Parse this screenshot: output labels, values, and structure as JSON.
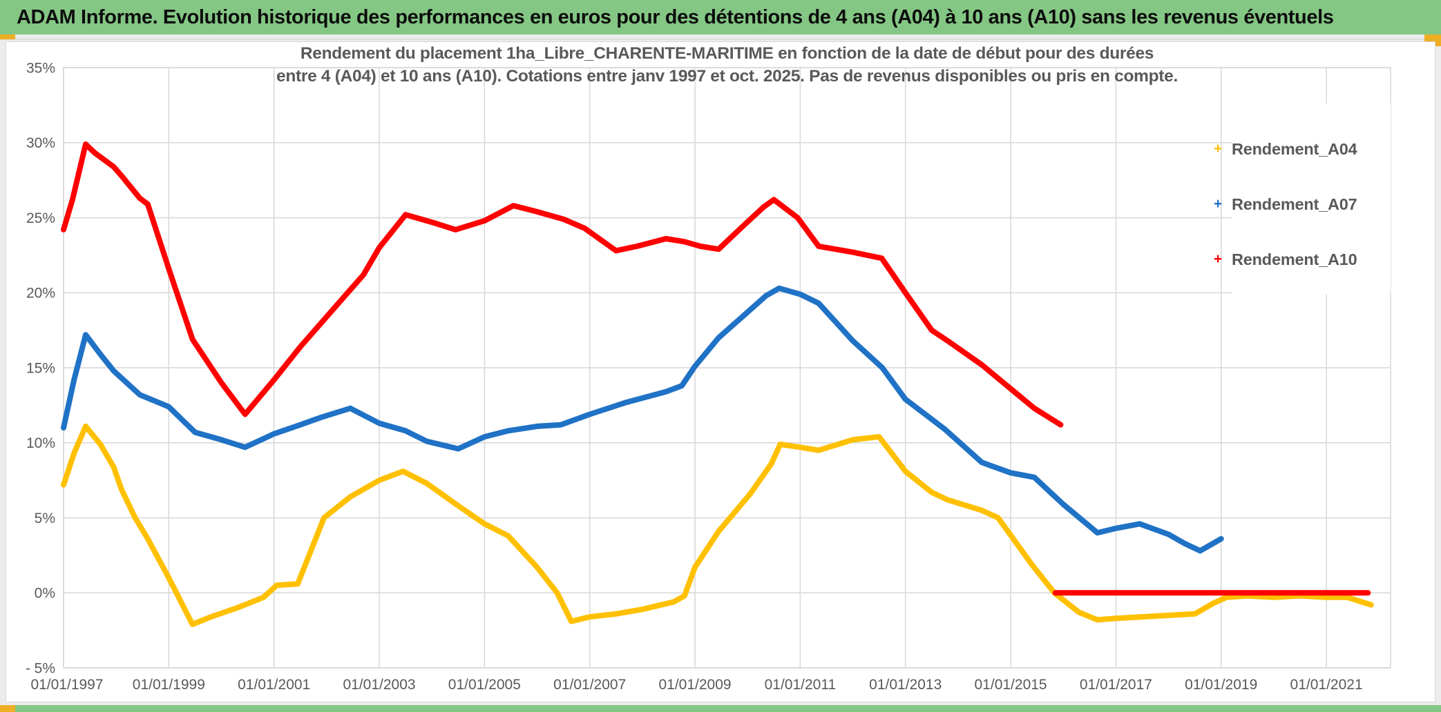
{
  "header": {
    "title": "ADAM Informe. Evolution historique des performances en euros pour des détentions de 4 ans (A04) à 10 ans (A10) sans les revenus éventuels"
  },
  "chart": {
    "title_line1": "Rendement du placement 1ha_Libre_CHARENTE-MARITIME en fonction de la date de début pour des durées",
    "title_line2": "entre 4 (A04) et 10 ans (A10). Cotations entre janv 1997 et oct. 2025. Pas de revenus disponibles ou pris en compte."
  },
  "colors": {
    "header_green": "#84C784",
    "accent_gold": "#EFAF24",
    "gridline": "#D9D9D9",
    "axis_text": "#595959",
    "series_a04": "#FFC000",
    "series_a07": "#1F72C5",
    "series_a10": "#FF0000"
  },
  "chart_data": {
    "type": "line",
    "title": "Rendement du placement 1ha_Libre_CHARENTE-MARITIME en fonction de la date de début pour des durées entre 4 (A04) et 10 ans (A10). Cotations entre janv 1997 et oct. 2025. Pas de revenus disponibles ou pris en compte.",
    "grid": true,
    "legend_position": "right",
    "x_axis": {
      "range_years": [
        1996.94,
        2022.2
      ],
      "ticks": [
        {
          "year": 1997,
          "label": "01/01/1997"
        },
        {
          "year": 1999,
          "label": "01/01/1999"
        },
        {
          "year": 2001,
          "label": "01/01/2001"
        },
        {
          "year": 2003,
          "label": "01/01/2003"
        },
        {
          "year": 2005,
          "label": "01/01/2005"
        },
        {
          "year": 2007,
          "label": "01/01/2007"
        },
        {
          "year": 2009,
          "label": "01/01/2009"
        },
        {
          "year": 2011,
          "label": "01/01/2011"
        },
        {
          "year": 2013,
          "label": "01/01/2013"
        },
        {
          "year": 2015,
          "label": "01/01/2015"
        },
        {
          "year": 2017,
          "label": "01/01/2017"
        },
        {
          "year": 2019,
          "label": "01/01/2019"
        },
        {
          "year": 2021,
          "label": "01/01/2021"
        }
      ]
    },
    "y_axis": {
      "range_percent": [
        -5,
        35
      ],
      "ticks": [
        {
          "v": 35,
          "label": "35%"
        },
        {
          "v": 30,
          "label": "30%"
        },
        {
          "v": 25,
          "label": "25%"
        },
        {
          "v": 20,
          "label": "20%"
        },
        {
          "v": 15,
          "label": "15%"
        },
        {
          "v": 10,
          "label": "10%"
        },
        {
          "v": 5,
          "label": "5%"
        },
        {
          "v": 0,
          "label": "0%"
        },
        {
          "v": -5,
          "label": "- 5%"
        }
      ]
    },
    "legend": [
      {
        "label": "Rendement_A04",
        "color": "#FFC000",
        "marker": "+"
      },
      {
        "label": "Rendement_A07",
        "color": "#1F72C5",
        "marker": "+"
      },
      {
        "label": "Rendement_A10",
        "color": "#FF0000",
        "marker": "+"
      }
    ],
    "series": [
      {
        "name": "Rendement_A04",
        "color": "#FFC000",
        "segments": [
          [
            [
              1997.0,
              7.2
            ],
            [
              1997.2,
              9.3
            ],
            [
              1997.42,
              11.1
            ],
            [
              1997.7,
              9.9
            ],
            [
              1997.95,
              8.4
            ],
            [
              1998.1,
              6.9
            ],
            [
              1998.36,
              5.0
            ],
            [
              1998.6,
              3.6
            ],
            [
              1999.0,
              1.0
            ],
            [
              1999.45,
              -2.1
            ],
            [
              1999.8,
              -1.6
            ],
            [
              2000.3,
              -1.0
            ],
            [
              2000.8,
              -0.3
            ],
            [
              2001.05,
              0.5
            ],
            [
              2001.45,
              0.6
            ],
            [
              2001.95,
              5.0
            ],
            [
              2002.45,
              6.4
            ],
            [
              2003.0,
              7.5
            ],
            [
              2003.45,
              8.1
            ],
            [
              2003.9,
              7.3
            ],
            [
              2004.5,
              5.8
            ],
            [
              2005.0,
              4.6
            ],
            [
              2005.45,
              3.8
            ],
            [
              2006.0,
              1.7
            ],
            [
              2006.38,
              0.0
            ],
            [
              2006.65,
              -1.9
            ],
            [
              2007.0,
              -1.6
            ],
            [
              2007.5,
              -1.4
            ],
            [
              2008.0,
              -1.1
            ],
            [
              2008.6,
              -0.6
            ],
            [
              2008.8,
              -0.2
            ],
            [
              2009.0,
              1.7
            ],
            [
              2009.45,
              4.1
            ],
            [
              2010.05,
              6.6
            ],
            [
              2010.45,
              8.6
            ],
            [
              2010.62,
              9.9
            ],
            [
              2011.0,
              9.7
            ],
            [
              2011.35,
              9.5
            ],
            [
              2012.0,
              10.2
            ],
            [
              2012.5,
              10.4
            ],
            [
              2013.0,
              8.1
            ],
            [
              2013.5,
              6.7
            ],
            [
              2013.8,
              6.2
            ],
            [
              2014.45,
              5.5
            ],
            [
              2014.76,
              5.0
            ],
            [
              2015.4,
              1.9
            ],
            [
              2015.83,
              0.0
            ],
            [
              2016.3,
              -1.3
            ],
            [
              2016.65,
              -1.8
            ],
            [
              2017.0,
              -1.7
            ],
            [
              2017.5,
              -1.6
            ],
            [
              2018.0,
              -1.5
            ],
            [
              2018.5,
              -1.4
            ],
            [
              2018.85,
              -0.7
            ],
            [
              2019.1,
              -0.3
            ],
            [
              2019.5,
              -0.2
            ],
            [
              2020.0,
              -0.3
            ],
            [
              2020.5,
              -0.2
            ],
            [
              2021.0,
              -0.3
            ],
            [
              2021.4,
              -0.3
            ],
            [
              2021.85,
              -0.8
            ]
          ]
        ]
      },
      {
        "name": "Rendement_A07",
        "color": "#1F72C5",
        "segments": [
          [
            [
              1997.0,
              11.0
            ],
            [
              1997.2,
              14.2
            ],
            [
              1997.42,
              17.2
            ],
            [
              1997.7,
              15.9
            ],
            [
              1997.95,
              14.8
            ],
            [
              1998.45,
              13.2
            ],
            [
              1999.0,
              12.4
            ],
            [
              1999.5,
              10.7
            ],
            [
              2000.0,
              10.2
            ],
            [
              2000.45,
              9.7
            ],
            [
              2001.0,
              10.6
            ],
            [
              2001.5,
              11.2
            ],
            [
              2001.9,
              11.7
            ],
            [
              2002.45,
              12.3
            ],
            [
              2003.0,
              11.3
            ],
            [
              2003.5,
              10.8
            ],
            [
              2003.9,
              10.1
            ],
            [
              2004.5,
              9.6
            ],
            [
              2005.0,
              10.4
            ],
            [
              2005.45,
              10.8
            ],
            [
              2006.0,
              11.1
            ],
            [
              2006.45,
              11.2
            ],
            [
              2007.0,
              11.9
            ],
            [
              2007.7,
              12.7
            ],
            [
              2008.45,
              13.4
            ],
            [
              2008.75,
              13.8
            ],
            [
              2009.0,
              15.1
            ],
            [
              2009.45,
              17.0
            ],
            [
              2009.9,
              18.4
            ],
            [
              2010.35,
              19.8
            ],
            [
              2010.6,
              20.3
            ],
            [
              2011.0,
              19.9
            ],
            [
              2011.35,
              19.3
            ],
            [
              2012.0,
              16.8
            ],
            [
              2012.56,
              15.0
            ],
            [
              2013.0,
              12.9
            ],
            [
              2013.75,
              10.9
            ],
            [
              2014.45,
              8.7
            ],
            [
              2014.6,
              8.5
            ],
            [
              2015.0,
              8.0
            ],
            [
              2015.45,
              7.7
            ],
            [
              2016.0,
              5.9
            ],
            [
              2016.65,
              4.0
            ],
            [
              2017.0,
              4.3
            ],
            [
              2017.45,
              4.6
            ],
            [
              2018.0,
              3.9
            ],
            [
              2018.3,
              3.3
            ],
            [
              2018.6,
              2.8
            ],
            [
              2019.0,
              3.6
            ]
          ]
        ]
      },
      {
        "name": "Rendement_A10",
        "color": "#FF0000",
        "segments": [
          [
            [
              1997.0,
              24.2
            ],
            [
              1997.17,
              26.2
            ],
            [
              1997.42,
              29.9
            ],
            [
              1997.6,
              29.3
            ],
            [
              1997.95,
              28.4
            ],
            [
              1998.1,
              27.8
            ],
            [
              1998.45,
              26.3
            ],
            [
              1998.6,
              25.9
            ],
            [
              1999.0,
              21.6
            ],
            [
              1999.45,
              16.9
            ],
            [
              2000.0,
              14.0
            ],
            [
              2000.45,
              11.9
            ],
            [
              2001.0,
              14.2
            ],
            [
              2001.5,
              16.4
            ],
            [
              2002.1,
              18.8
            ],
            [
              2002.7,
              21.2
            ],
            [
              2003.0,
              23.0
            ],
            [
              2003.5,
              25.2
            ],
            [
              2004.0,
              24.7
            ],
            [
              2004.45,
              24.2
            ],
            [
              2005.0,
              24.8
            ],
            [
              2005.55,
              25.8
            ],
            [
              2006.0,
              25.4
            ],
            [
              2006.5,
              24.9
            ],
            [
              2006.9,
              24.3
            ],
            [
              2007.5,
              22.8
            ],
            [
              2007.9,
              23.1
            ],
            [
              2008.45,
              23.6
            ],
            [
              2008.8,
              23.4
            ],
            [
              2009.1,
              23.1
            ],
            [
              2009.45,
              22.9
            ],
            [
              2009.9,
              24.4
            ],
            [
              2010.3,
              25.7
            ],
            [
              2010.5,
              26.2
            ],
            [
              2010.95,
              25.0
            ],
            [
              2011.35,
              23.1
            ],
            [
              2012.0,
              22.7
            ],
            [
              2012.55,
              22.3
            ],
            [
              2013.0,
              20.0
            ],
            [
              2013.5,
              17.5
            ],
            [
              2013.8,
              16.8
            ],
            [
              2014.45,
              15.2
            ],
            [
              2015.0,
              13.6
            ],
            [
              2015.45,
              12.3
            ],
            [
              2015.95,
              11.2
            ]
          ],
          [
            [
              2015.85,
              0.0
            ],
            [
              2021.79,
              0.0
            ]
          ]
        ]
      }
    ]
  }
}
